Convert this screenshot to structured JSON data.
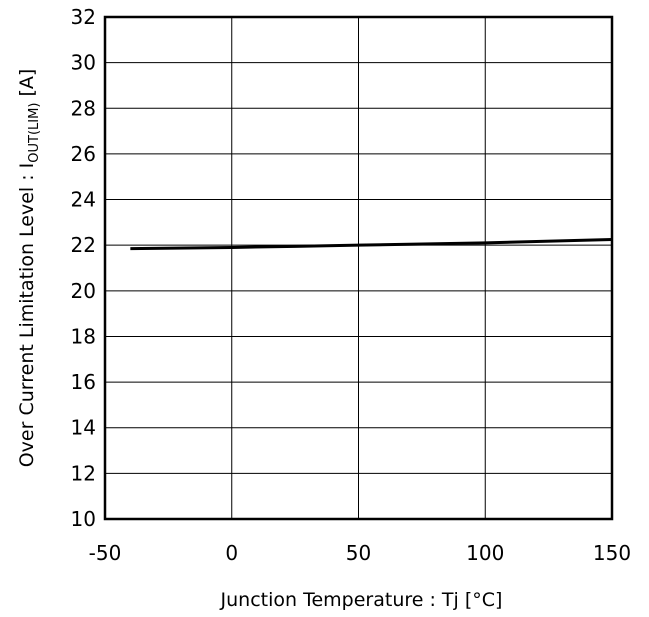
{
  "chart_data": {
    "type": "line",
    "xlabel": "Junction Temperature : Tj [°C]",
    "ylabel_prefix": "Over Current Limitation Level : I",
    "ylabel_subscript": "OUT(LIM)",
    "ylabel_suffix": " [A]",
    "xlim": [
      -50,
      150
    ],
    "ylim": [
      10,
      32
    ],
    "xticks": [
      -50,
      0,
      50,
      100,
      150
    ],
    "yticks": [
      10,
      12,
      14,
      16,
      18,
      20,
      22,
      24,
      26,
      28,
      30,
      32
    ],
    "grid": true,
    "series": [
      {
        "x": [
          -40,
          0,
          25,
          50,
          100,
          150
        ],
        "y": [
          21.85,
          21.9,
          21.95,
          22.0,
          22.1,
          22.25
        ]
      }
    ]
  }
}
